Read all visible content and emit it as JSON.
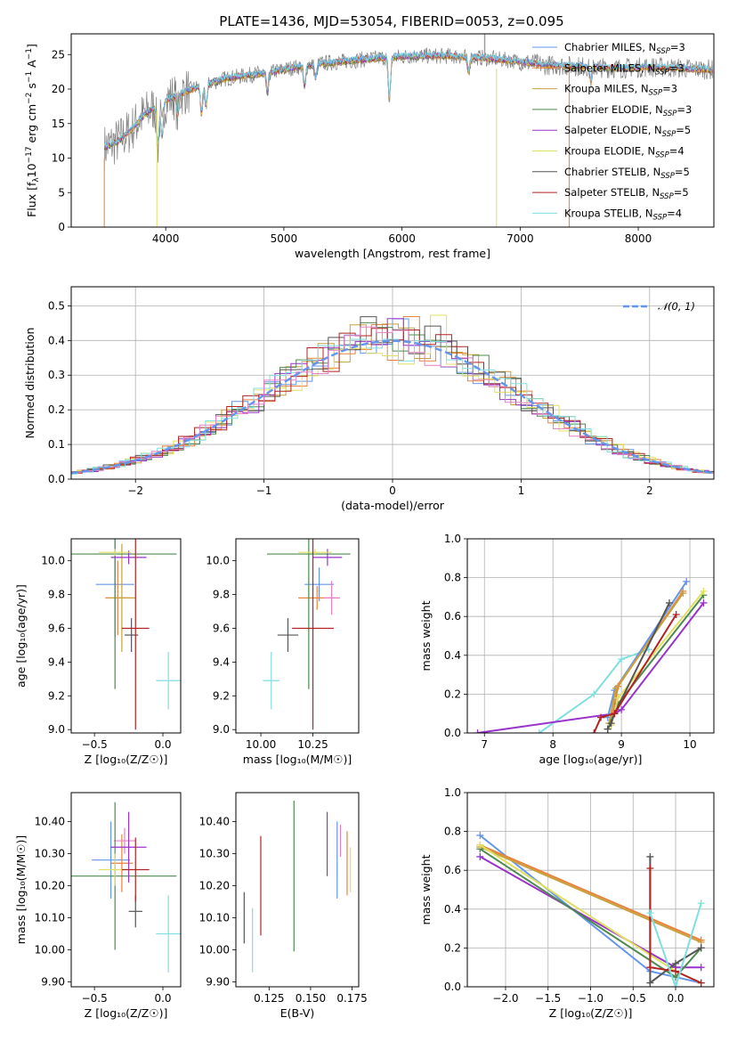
{
  "title": "PLATE=1436, MJD=53054, FIBERID=0053, z=0.095",
  "colors": {
    "chabrier_miles": "#6495ed",
    "salpeter_miles": "#e9823c",
    "kroupa_miles": "#c8a03c",
    "chabrier_elodie": "#4e8a4e",
    "salpeter_elodie": "#9932cc",
    "kroupa_elodie": "#e0e060",
    "chabrier_stelib": "#555555",
    "salpeter_stelib": "#b22222",
    "kroupa_stelib": "#7fdfe0",
    "gauss": "#6495ed",
    "pink": "#e77fc4"
  },
  "legend_spectrum": [
    {
      "key": "chabrier_miles",
      "pre": "Chabrier MILES, N",
      "sub": "SSP",
      "post": "=3"
    },
    {
      "key": "salpeter_miles",
      "pre": "Salpeter MILES, N",
      "sub": "SSP",
      "post": "=3"
    },
    {
      "key": "kroupa_miles",
      "pre": "Kroupa MILES, N",
      "sub": "SSP",
      "post": "=3"
    },
    {
      "key": "chabrier_elodie",
      "pre": "Chabrier ELODIE, N",
      "sub": "SSP",
      "post": "=3"
    },
    {
      "key": "salpeter_elodie",
      "pre": "Salpeter ELODIE, N",
      "sub": "SSP",
      "post": "=5"
    },
    {
      "key": "kroupa_elodie",
      "pre": "Kroupa ELODIE, N",
      "sub": "SSP",
      "post": "=4"
    },
    {
      "key": "chabrier_stelib",
      "pre": "Chabrier STELIB, N",
      "sub": "SSP",
      "post": "=5"
    },
    {
      "key": "salpeter_stelib",
      "pre": "Salpeter STELIB, N",
      "sub": "SSP",
      "post": "=5"
    },
    {
      "key": "kroupa_stelib",
      "pre": "Kroupa STELIB, N",
      "sub": "SSP",
      "post": "=4"
    }
  ],
  "legend_hist": "𝒩(0, 1)",
  "chart_data": [
    {
      "id": "spectrum",
      "type": "line",
      "xlabel": "wavelength [Angstrom, rest frame]",
      "ylabel_html": "Flux [f<tspan font-size='9' dy='3'>λ</tspan><tspan dy='-3'>10</tspan><tspan font-size='9' dy='-5'>−17</tspan><tspan dy='5'> erg cm</tspan><tspan font-size='9' dy='-5'>−2</tspan><tspan dy='5'> s</tspan><tspan font-size='9' dy='-5'>−1</tspan><tspan dy='5'> A</tspan><tspan font-size='9' dy='-5'>−1</tspan><tspan dy='5'>]</tspan>",
      "xlim": [
        3200,
        8640
      ],
      "ylim": [
        0,
        28
      ],
      "xticks": [
        4000,
        5000,
        6000,
        7000,
        8000
      ],
      "yticks": [
        0,
        5,
        10,
        15,
        20,
        25
      ],
      "continuum": [
        [
          3480,
          11.5
        ],
        [
          3600,
          12.5
        ],
        [
          3700,
          14
        ],
        [
          3800,
          16
        ],
        [
          3950,
          18
        ],
        [
          4100,
          19.2
        ],
        [
          4300,
          20.5
        ],
        [
          4500,
          21.5
        ],
        [
          4700,
          22
        ],
        [
          4900,
          22.5
        ],
        [
          5200,
          23.5
        ],
        [
          5500,
          24
        ],
        [
          5800,
          24.5
        ],
        [
          6100,
          24.8
        ],
        [
          6400,
          24.8
        ],
        [
          6700,
          24.5
        ],
        [
          7000,
          24
        ],
        [
          7200,
          23.5
        ],
        [
          7500,
          23.3
        ],
        [
          7800,
          23
        ],
        [
          8100,
          23.2
        ],
        [
          8400,
          23
        ],
        [
          8640,
          22.8
        ]
      ]
    },
    {
      "id": "residuals",
      "type": "histogram",
      "xlabel": "(data-model)/error",
      "ylabel": "Normed distribution",
      "xlim": [
        -2.5,
        2.5
      ],
      "ylim": [
        0,
        0.555
      ],
      "xticks": [
        -2,
        -1,
        0,
        1,
        2
      ],
      "yticks": [
        0.0,
        0.1,
        0.2,
        0.3,
        0.4,
        0.5
      ],
      "bin_width": 0.125,
      "gauss": "N(0,1)"
    },
    {
      "id": "age_vs_Z",
      "type": "scatter",
      "xlabel": "Z [log₁₀(Z/Z☉)]",
      "ylabel": "age  [log₁₀(age/yr)]",
      "xlim": [
        -0.67,
        0.13
      ],
      "ylim": [
        8.98,
        10.13
      ],
      "xticks": [
        -0.5,
        0.0
      ],
      "yticks": [
        9.0,
        9.2,
        9.4,
        9.6,
        9.8,
        10.0
      ],
      "points": [
        {
          "c": "chabrier_miles",
          "x": -0.35,
          "xe": 0.14,
          "y": 9.86,
          "ye": 0.31
        },
        {
          "c": "salpeter_miles",
          "x": -0.33,
          "xe": 0.09,
          "y": 9.78,
          "ye": 0.22
        },
        {
          "c": "kroupa_miles",
          "x": -0.3,
          "xe": 0.1,
          "y": 9.78,
          "ye": 0.32
        },
        {
          "c": "chabrier_elodie",
          "x": -0.35,
          "xe": 0.45,
          "y": 10.04,
          "ye": 0.8
        },
        {
          "c": "salpeter_elodie",
          "x": -0.25,
          "xe": 0.13,
          "y": 10.02,
          "ye": 0.04
        },
        {
          "c": "kroupa_elodie",
          "x": -0.35,
          "xe": 0.12,
          "y": 10.05,
          "ye": 0.02
        },
        {
          "c": "chabrier_stelib",
          "x": -0.23,
          "xe": 0.05,
          "y": 9.56,
          "ye": 0.1
        },
        {
          "c": "salpeter_stelib",
          "x": -0.2,
          "xe": 0.1,
          "y": 9.6,
          "ye": 0.6
        },
        {
          "c": "kroupa_stelib",
          "x": 0.04,
          "xe": 0.09,
          "y": 9.29,
          "ye": 0.17
        }
      ]
    },
    {
      "id": "age_vs_mass",
      "type": "scatter",
      "xlabel": "mass [log₁₀(M/M☉)]",
      "ylabel": "",
      "xlim": [
        9.88,
        10.47
      ],
      "ylim": [
        8.98,
        10.13
      ],
      "xticks": [
        10.0,
        10.25
      ],
      "xticklabels": [
        "10.00",
        "10.25"
      ],
      "yticks": [
        9.0,
        9.2,
        9.4,
        9.6,
        9.8,
        10.0
      ],
      "points": [
        {
          "c": "chabrier_miles",
          "x": 10.28,
          "xe": 0.07,
          "y": 9.86,
          "ye": 0.1
        },
        {
          "c": "salpeter_miles",
          "x": 10.27,
          "xe": 0.09,
          "y": 9.78,
          "ye": 0.07
        },
        {
          "c": "pink",
          "x": 10.34,
          "xe": 0.04,
          "y": 9.78,
          "ye": 0.1
        },
        {
          "c": "chabrier_elodie",
          "x": 10.23,
          "xe": 0.2,
          "y": 10.04,
          "ye": 0.8
        },
        {
          "c": "salpeter_elodie",
          "x": 10.32,
          "xe": 0.07,
          "y": 10.02,
          "ye": 0.05
        },
        {
          "c": "kroupa_elodie",
          "x": 10.26,
          "xe": 0.08,
          "y": 10.05,
          "ye": 0.02
        },
        {
          "c": "chabrier_stelib",
          "x": 10.13,
          "xe": 0.05,
          "y": 9.56,
          "ye": 0.1
        },
        {
          "c": "salpeter_stelib",
          "x": 10.25,
          "xe": 0.1,
          "y": 9.6,
          "ye": 0.6
        },
        {
          "c": "kroupa_stelib",
          "x": 10.05,
          "xe": 0.04,
          "y": 9.29,
          "ye": 0.17
        }
      ]
    },
    {
      "id": "mw_vs_age",
      "type": "line",
      "xlabel": "age  [log₁₀(age/yr)]",
      "ylabel": "mass weight",
      "xlim": [
        6.75,
        10.35
      ],
      "ylim": [
        0,
        1
      ],
      "xticks": [
        7,
        8,
        9,
        10
      ],
      "yticks": [
        0.0,
        0.2,
        0.4,
        0.6,
        0.8,
        1.0
      ],
      "series": [
        {
          "c": "kroupa_stelib",
          "pts": [
            [
              7.8,
              0
            ],
            [
              8.6,
              0.2
            ],
            [
              9.0,
              0.38
            ],
            [
              9.4,
              0.43
            ]
          ]
        },
        {
          "c": "salpeter_elodie",
          "pts": [
            [
              6.9,
              0
            ],
            [
              8.9,
              0.1
            ],
            [
              9.0,
              0.12
            ],
            [
              10.2,
              0.67
            ]
          ]
        },
        {
          "c": "chabrier_miles",
          "pts": [
            [
              8.8,
              0.08
            ],
            [
              8.9,
              0.22
            ],
            [
              9.95,
              0.78
            ]
          ]
        },
        {
          "c": "salpeter_miles",
          "pts": [
            [
              8.85,
              0.05
            ],
            [
              8.95,
              0.24
            ],
            [
              9.9,
              0.73
            ]
          ]
        },
        {
          "c": "kroupa_miles",
          "pts": [
            [
              8.82,
              0.05
            ],
            [
              8.92,
              0.23
            ],
            [
              9.9,
              0.72
            ]
          ]
        },
        {
          "c": "chabrier_elodie",
          "pts": [
            [
              8.8,
              0.02
            ],
            [
              8.95,
              0.15
            ],
            [
              10.2,
              0.71
            ]
          ]
        },
        {
          "c": "kroupa_elodie",
          "pts": [
            [
              8.85,
              0.04
            ],
            [
              8.95,
              0.18
            ],
            [
              10.2,
              0.73
            ]
          ]
        },
        {
          "c": "chabrier_stelib",
          "pts": [
            [
              8.8,
              0.02
            ],
            [
              8.85,
              0.05
            ],
            [
              8.9,
              0.1
            ],
            [
              9.7,
              0.67
            ]
          ]
        },
        {
          "c": "salpeter_stelib",
          "pts": [
            [
              8.6,
              0
            ],
            [
              8.7,
              0.08
            ],
            [
              8.9,
              0.1
            ],
            [
              9.8,
              0.61
            ]
          ]
        }
      ]
    },
    {
      "id": "mass_vs_Z",
      "type": "scatter",
      "xlabel": "Z [log₁₀(Z/Z☉)]",
      "ylabel": "mass [log₁₀(M/M☉)]",
      "xlim": [
        -0.67,
        0.13
      ],
      "ylim": [
        9.885,
        10.49
      ],
      "xticks": [
        -0.5,
        0.0
      ],
      "yticks": [
        9.9,
        10.0,
        10.1,
        10.2,
        10.3,
        10.4
      ],
      "points": [
        {
          "c": "chabrier_miles",
          "x": -0.38,
          "xe": 0.14,
          "y": 10.28,
          "ye": 0.12
        },
        {
          "c": "salpeter_miles",
          "x": -0.3,
          "xe": 0.08,
          "y": 10.27,
          "ye": 0.09
        },
        {
          "c": "pink",
          "x": -0.28,
          "xe": 0.08,
          "y": 10.34,
          "ye": 0.04
        },
        {
          "c": "chabrier_elodie",
          "x": -0.35,
          "xe": 0.45,
          "y": 10.23,
          "ye": 0.23
        },
        {
          "c": "salpeter_elodie",
          "x": -0.25,
          "xe": 0.13,
          "y": 10.32,
          "ye": 0.11
        },
        {
          "c": "kroupa_elodie",
          "x": -0.35,
          "xe": 0.12,
          "y": 10.25,
          "ye": 0.05
        },
        {
          "c": "chabrier_stelib",
          "x": -0.2,
          "xe": 0.05,
          "y": 10.12,
          "ye": 0.05
        },
        {
          "c": "salpeter_stelib",
          "x": -0.2,
          "xe": 0.1,
          "y": 10.25,
          "ye": 0.1
        },
        {
          "c": "kroupa_stelib",
          "x": 0.04,
          "xe": 0.09,
          "y": 10.05,
          "ye": 0.12
        }
      ]
    },
    {
      "id": "mass_vs_ebv",
      "type": "scatter",
      "xlabel": "E(B-V)",
      "ylabel": "",
      "xlim": [
        0.105,
        0.179
      ],
      "ylim": [
        9.885,
        10.49
      ],
      "xticks": [
        0.125,
        0.15,
        0.175
      ],
      "xticklabels": [
        "0.125",
        "0.150",
        "0.175"
      ],
      "yticks": [
        9.9,
        10.0,
        10.1,
        10.2,
        10.3,
        10.4
      ],
      "points": [
        {
          "c": "chabrier_stelib",
          "x": 0.11,
          "xe": 0,
          "y": 10.1,
          "ye": 0.08
        },
        {
          "c": "kroupa_stelib",
          "x": 0.115,
          "xe": 0,
          "y": 10.03,
          "ye": 0.1
        },
        {
          "c": "salpeter_stelib",
          "x": 0.12,
          "xe": 0,
          "y": 10.2,
          "ye": 0.155
        },
        {
          "c": "chabrier_elodie",
          "x": 0.14,
          "xe": 0,
          "y": 10.23,
          "ye": 0.235
        },
        {
          "c": "salpeter_elodie",
          "x": 0.16,
          "xe": 0,
          "y": 10.33,
          "ye": 0.1
        },
        {
          "c": "chabrier_miles",
          "x": 0.166,
          "xe": 0,
          "y": 10.28,
          "ye": 0.12
        },
        {
          "c": "pink",
          "x": 0.168,
          "xe": 0,
          "y": 10.34,
          "ye": 0.05
        },
        {
          "c": "salpeter_miles",
          "x": 0.172,
          "xe": 0,
          "y": 10.27,
          "ye": 0.1
        },
        {
          "c": "kroupa_elodie",
          "x": 0.174,
          "xe": 0,
          "y": 10.25,
          "ye": 0.07
        }
      ]
    },
    {
      "id": "mw_vs_Z",
      "type": "line",
      "xlabel": "Z [log₁₀(Z/Z☉)]",
      "ylabel": "mass weight",
      "xlim": [
        -2.45,
        0.45
      ],
      "ylim": [
        0,
        1
      ],
      "xticks": [
        -2.0,
        -1.5,
        -1.0,
        -0.5,
        0.0
      ],
      "yticks": [
        0.0,
        0.2,
        0.4,
        0.6,
        0.8,
        1.0
      ],
      "series": [
        {
          "c": "chabrier_miles",
          "pts": [
            [
              -2.3,
              0.78
            ],
            [
              -0.3,
              0.08
            ],
            [
              0.3,
              0.02
            ]
          ]
        },
        {
          "c": "salpeter_miles",
          "pts": [
            [
              -2.3,
              0.73
            ],
            [
              0.3,
              0.24
            ]
          ]
        },
        {
          "c": "kroupa_miles",
          "pts": [
            [
              -2.3,
              0.72
            ],
            [
              0.3,
              0.23
            ]
          ]
        },
        {
          "c": "salpeter_elodie",
          "pts": [
            [
              -2.3,
              0.67
            ],
            [
              0,
              0.1
            ],
            [
              0.3,
              0.1
            ]
          ]
        },
        {
          "c": "chabrier_elodie",
          "pts": [
            [
              -2.3,
              0.71
            ],
            [
              0,
              0.05
            ],
            [
              0.3,
              0.2
            ]
          ]
        },
        {
          "c": "kroupa_elodie",
          "pts": [
            [
              -2.3,
              0.73
            ],
            [
              0,
              0.08
            ],
            [
              0.3,
              0.02
            ]
          ]
        },
        {
          "c": "chabrier_stelib",
          "pts": [
            [
              -0.3,
              0.67
            ],
            [
              -0.3,
              0.02
            ],
            [
              0,
              0.12
            ],
            [
              0.3,
              0.2
            ]
          ]
        },
        {
          "c": "salpeter_stelib",
          "pts": [
            [
              -0.3,
              0.61
            ],
            [
              -0.3,
              0.1
            ],
            [
              0,
              0.08
            ],
            [
              0.3,
              0.02
            ]
          ]
        },
        {
          "c": "kroupa_stelib",
          "pts": [
            [
              -0.3,
              0.38
            ],
            [
              0,
              0
            ],
            [
              0.3,
              0.43
            ]
          ]
        }
      ]
    }
  ]
}
